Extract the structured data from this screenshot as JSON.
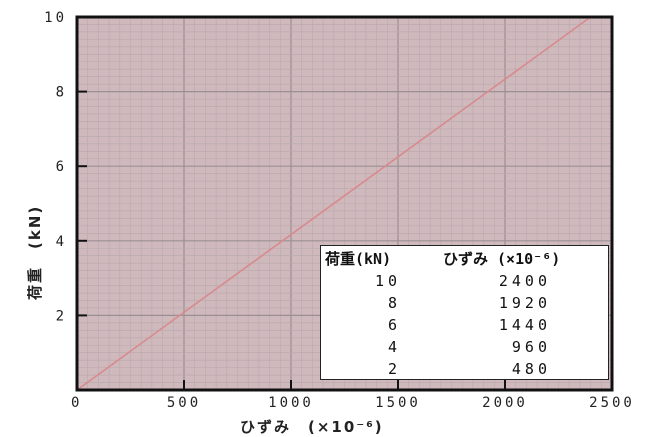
{
  "chart_data": {
    "type": "line",
    "xlabel": "ひずみ　(×10⁻⁶)",
    "ylabel": "荷重　(kN)",
    "xlim": [
      0,
      2500
    ],
    "ylim": [
      0,
      10
    ],
    "x_ticks": [
      0,
      500,
      1000,
      1500,
      2000,
      2500
    ],
    "y_ticks": [
      2,
      4,
      6,
      8,
      10
    ],
    "x_tick_labels": [
      "0",
      "500",
      "1000",
      "1500",
      "2000",
      "2500"
    ],
    "y_tick_labels": [
      "2",
      "4",
      "6",
      "8",
      "10"
    ],
    "grid": true,
    "colors": {
      "background": "#cfb9bc",
      "grid_minor": "#b9a9ad",
      "grid_major": "#9c8f93",
      "line": "#d88a8e"
    },
    "series": [
      {
        "x": [
          0,
          480,
          960,
          1440,
          1920,
          2400
        ],
        "y": [
          0,
          2,
          4,
          6,
          8,
          10
        ]
      }
    ],
    "table": {
      "headers": [
        "荷重(kN)",
        "ひずみ (×10⁻⁶)"
      ],
      "rows": [
        [
          "10",
          "2400"
        ],
        [
          "8",
          "1920"
        ],
        [
          "6",
          "1440"
        ],
        [
          "4",
          "960"
        ],
        [
          "2",
          "480"
        ]
      ]
    }
  }
}
